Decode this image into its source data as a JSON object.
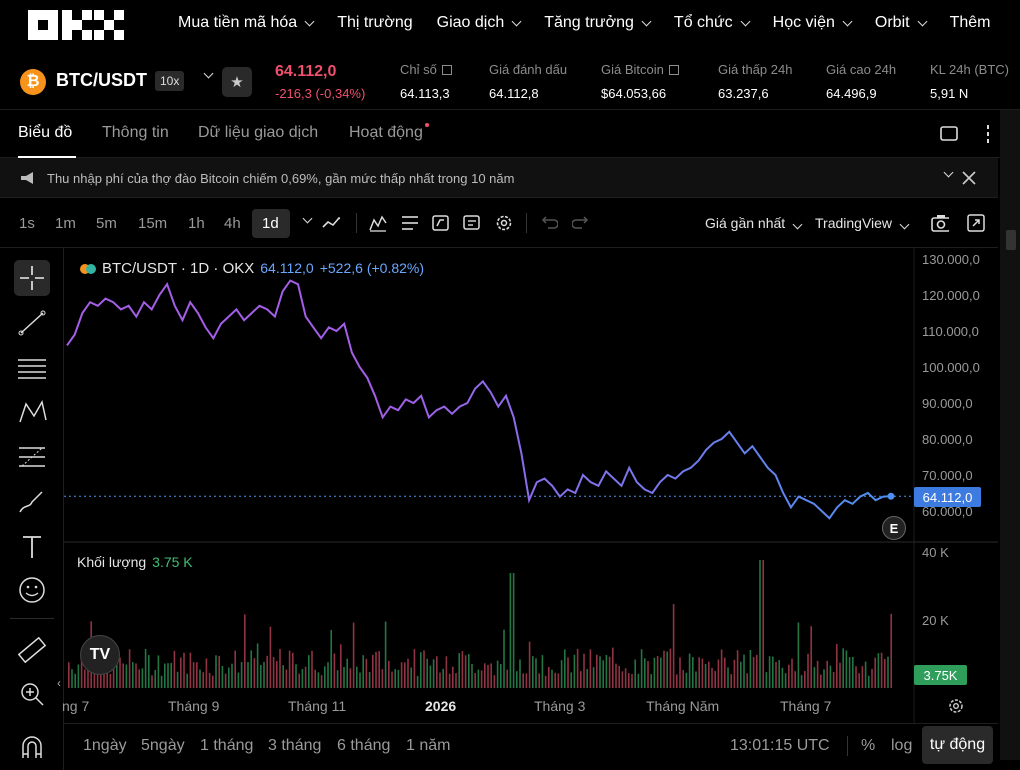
{
  "nav": {
    "items": [
      "Mua tiền mã hóa",
      "Thị trường",
      "Giao dịch",
      "Tăng trưởng",
      "Tổ chức",
      "Học viện",
      "Orbit",
      "Thêm"
    ]
  },
  "ticker": {
    "coin_symbol": "₿",
    "pair": "BTC/USDT",
    "leverage": "10x",
    "last_price": "64.112,0",
    "change": "-216,3 (-0,34%)",
    "stats": [
      {
        "label": "Chỉ số",
        "value": "64.113,3",
        "external": true
      },
      {
        "label": "Giá đánh dấu",
        "value": "64.112,8",
        "external": false
      },
      {
        "label": "Giá Bitcoin",
        "value": "$64.053,66",
        "external": true
      },
      {
        "label": "Giá thấp 24h",
        "value": "63.237,6",
        "external": false
      },
      {
        "label": "Giá cao 24h",
        "value": "64.496,9",
        "external": false
      },
      {
        "label": "KL 24h (BTC)",
        "value": "5,91 N",
        "external": false
      }
    ],
    "colors": {
      "down": "#f0506e",
      "brand_btc": "#f7931a"
    }
  },
  "tabs": [
    "Biểu đồ",
    "Thông tin",
    "Dữ liệu giao dịch",
    "Hoạt động"
  ],
  "notice": {
    "text": "Thu nhập phí của thợ đào Bitcoin chiếm 0,69%, gần mức thấp nhất trong 10 năm"
  },
  "toolbar": {
    "timeframes": [
      "1s",
      "1m",
      "5m",
      "15m",
      "1h",
      "4h",
      "1d"
    ],
    "selected_timeframe": "1d",
    "price_type": "Giá gần nhất",
    "chart_engine": "TradingView"
  },
  "chart": {
    "legend_title": "BTC/USDT · 1D · OKX",
    "legend_price": "64.112,0",
    "legend_change": "+522,6 (+0.82%)",
    "volume_label": "Khối lượng",
    "volume_value": "3.75 K",
    "price_tag": "64.112,0",
    "volume_tag": "3.75K",
    "e_badge": "E",
    "tv_logo": "TV",
    "colors": {
      "line_start": "#a45ee8",
      "line_end": "#4f8ff0",
      "up": "#2f9e5b",
      "down": "#c0445a"
    }
  },
  "chart_data": {
    "type": "line",
    "y_axis_labels": [
      "130.000,0",
      "120.000,0",
      "110.000,0",
      "100.000,0",
      "90.000,0",
      "80.000,0",
      "70.000,0",
      "60.000,0"
    ],
    "ylim": [
      56000,
      132000
    ],
    "volume_axis_labels": [
      "40 K",
      "20 K"
    ],
    "x_axis_labels": [
      "ng 7",
      "Tháng 9",
      "Tháng 11",
      "2026",
      "Tháng 3",
      "Tháng Năm",
      "Tháng 7"
    ],
    "series": [
      {
        "values": [
          106000,
          109000,
          115000,
          118000,
          117000,
          119000,
          118000,
          116000,
          117000,
          114000,
          118000,
          116000,
          120000,
          123000,
          117000,
          113000,
          118000,
          115000,
          111000,
          108000,
          112000,
          114000,
          116000,
          113000,
          115000,
          117000,
          116000,
          114000,
          121000,
          124000,
          123000,
          114000,
          111000,
          108000,
          111000,
          110000,
          112000,
          104000,
          100000,
          97000,
          92000,
          86000,
          89000,
          88000,
          91000,
          90000,
          92000,
          86000,
          88000,
          89000,
          87000,
          89000,
          90000,
          94000,
          96000,
          93000,
          89000,
          92000,
          86000,
          76000,
          63000,
          68000,
          69000,
          67000,
          64000,
          66000,
          65000,
          70000,
          68000,
          67000,
          71000,
          69000,
          67000,
          72000,
          68000,
          66000,
          65000,
          68000,
          70000,
          69000,
          71000,
          72000,
          74000,
          77000,
          79000,
          80000,
          82000,
          79000,
          76000,
          78000,
          75000,
          72000,
          70000,
          65000,
          61000,
          64000,
          63000,
          62000,
          60000,
          58000,
          61000,
          63000,
          62000,
          64000,
          65000,
          63000,
          64000,
          64112
        ]
      }
    ]
  },
  "bottom": {
    "ranges": [
      "1ngày",
      "5ngày",
      "1 tháng",
      "3 tháng",
      "6 tháng",
      "1 năm"
    ],
    "clock": "13:01:15 UTC",
    "percent": "%",
    "log": "log",
    "auto": "tự động"
  }
}
